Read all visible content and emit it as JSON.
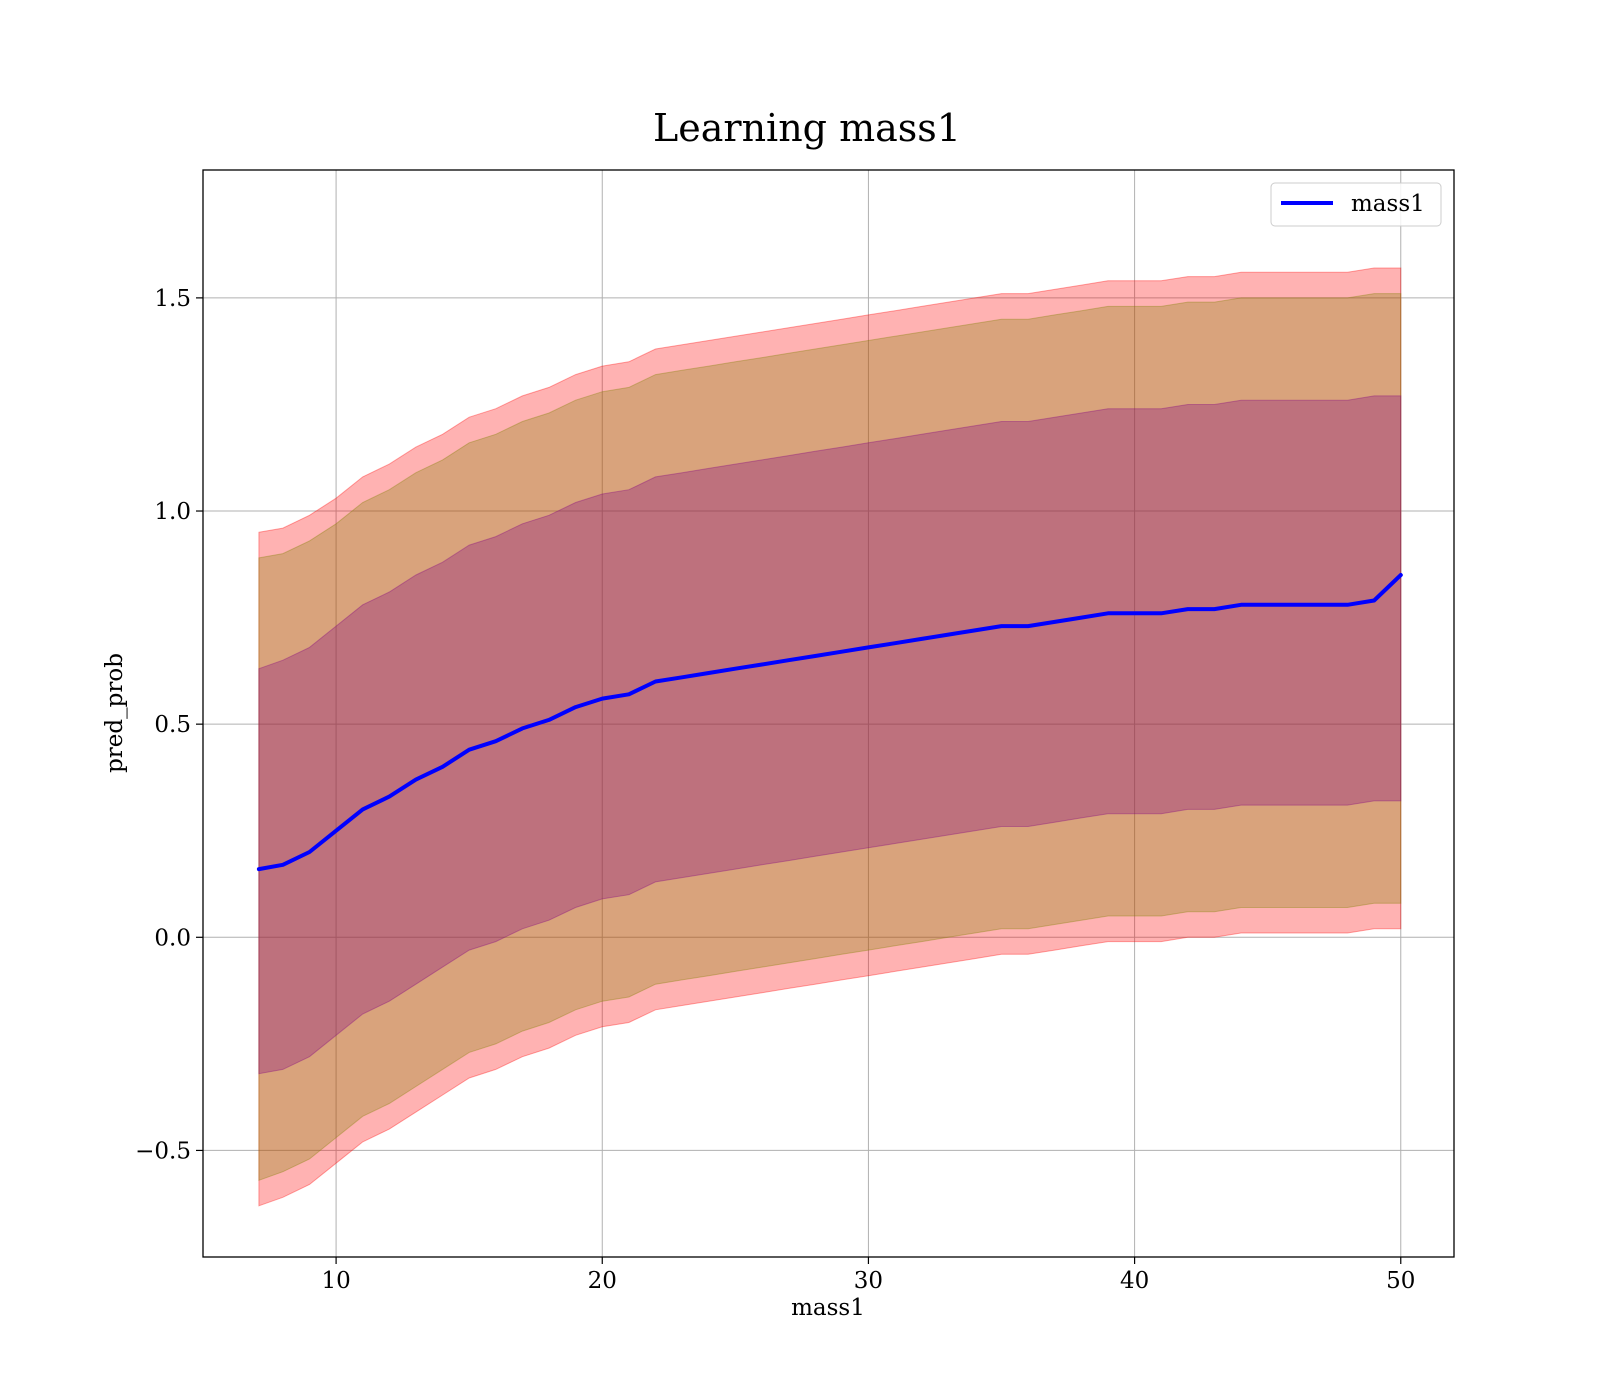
{
  "chart_data": {
    "type": "line",
    "title": "Learning mass1",
    "xlabel": "mass1",
    "ylabel": "pred_prob",
    "xlim": [
      5.0,
      52.0
    ],
    "ylim": [
      -0.75,
      1.8
    ],
    "xticks": [
      10,
      20,
      30,
      40,
      50
    ],
    "yticks": [
      -0.5,
      0.0,
      0.5,
      1.0,
      1.5
    ],
    "xtick_labels": [
      "10",
      "20",
      "30",
      "40",
      "50"
    ],
    "ytick_labels": [
      "−0.5",
      "0.0",
      "0.5",
      "1.0",
      "1.5"
    ],
    "grid": true,
    "legend": {
      "placement": "top-right",
      "entries": [
        "mass1"
      ]
    },
    "colors": {
      "line": "#0000ff",
      "band_outer": "#ff0000",
      "band_middle": "#808000",
      "band_inner": "#800080"
    },
    "series": [
      {
        "name": "mass1",
        "x": [
          7.1,
          8.0,
          9.0,
          10.0,
          11.0,
          12.0,
          13.0,
          14.0,
          15.0,
          16.0,
          17.0,
          18.0,
          19.0,
          20.0,
          21.0,
          22.0,
          23.0,
          24.0,
          25.0,
          26.0,
          27.0,
          28.0,
          29.0,
          30.0,
          31.0,
          32.0,
          33.0,
          34.0,
          35.0,
          36.0,
          37.0,
          38.0,
          39.0,
          40.0,
          41.0,
          42.0,
          43.0,
          44.0,
          45.0,
          46.0,
          47.0,
          48.0,
          49.0,
          50.0
        ],
        "y": [
          0.16,
          0.17,
          0.2,
          0.25,
          0.3,
          0.33,
          0.37,
          0.4,
          0.44,
          0.46,
          0.49,
          0.51,
          0.54,
          0.56,
          0.57,
          0.6,
          0.61,
          0.62,
          0.63,
          0.64,
          0.65,
          0.66,
          0.67,
          0.68,
          0.69,
          0.7,
          0.71,
          0.72,
          0.73,
          0.73,
          0.74,
          0.75,
          0.76,
          0.76,
          0.76,
          0.77,
          0.77,
          0.78,
          0.78,
          0.78,
          0.78,
          0.78,
          0.79,
          0.85
        ]
      }
    ],
    "bands": [
      {
        "level": "outer",
        "lower": [
          -0.63,
          -0.61,
          -0.58,
          -0.53,
          -0.48,
          -0.45,
          -0.41,
          -0.37,
          -0.33,
          -0.31,
          -0.28,
          -0.26,
          -0.23,
          -0.21,
          -0.2,
          -0.17,
          -0.16,
          -0.15,
          -0.14,
          -0.13,
          -0.12,
          -0.11,
          -0.1,
          -0.09,
          -0.08,
          -0.07,
          -0.06,
          -0.05,
          -0.04,
          -0.04,
          -0.03,
          -0.02,
          -0.01,
          -0.01,
          -0.01,
          0.0,
          0.0,
          0.01,
          0.01,
          0.01,
          0.01,
          0.01,
          0.02,
          0.02
        ],
        "upper": [
          0.95,
          0.96,
          0.99,
          1.03,
          1.08,
          1.11,
          1.15,
          1.18,
          1.22,
          1.24,
          1.27,
          1.29,
          1.32,
          1.34,
          1.35,
          1.38,
          1.39,
          1.4,
          1.41,
          1.42,
          1.43,
          1.44,
          1.45,
          1.46,
          1.47,
          1.48,
          1.49,
          1.5,
          1.51,
          1.51,
          1.52,
          1.53,
          1.54,
          1.54,
          1.54,
          1.55,
          1.55,
          1.56,
          1.56,
          1.56,
          1.56,
          1.56,
          1.57,
          1.57
        ]
      },
      {
        "level": "middle",
        "lower": [
          -0.57,
          -0.55,
          -0.52,
          -0.47,
          -0.42,
          -0.39,
          -0.35,
          -0.31,
          -0.27,
          -0.25,
          -0.22,
          -0.2,
          -0.17,
          -0.15,
          -0.14,
          -0.11,
          -0.1,
          -0.09,
          -0.08,
          -0.07,
          -0.06,
          -0.05,
          -0.04,
          -0.03,
          -0.02,
          -0.01,
          0.0,
          0.01,
          0.02,
          0.02,
          0.03,
          0.04,
          0.05,
          0.05,
          0.05,
          0.06,
          0.06,
          0.07,
          0.07,
          0.07,
          0.07,
          0.07,
          0.08,
          0.08
        ],
        "upper": [
          0.89,
          0.9,
          0.93,
          0.97,
          1.02,
          1.05,
          1.09,
          1.12,
          1.16,
          1.18,
          1.21,
          1.23,
          1.26,
          1.28,
          1.29,
          1.32,
          1.33,
          1.34,
          1.35,
          1.36,
          1.37,
          1.38,
          1.39,
          1.4,
          1.41,
          1.42,
          1.43,
          1.44,
          1.45,
          1.45,
          1.46,
          1.47,
          1.48,
          1.48,
          1.48,
          1.49,
          1.49,
          1.5,
          1.5,
          1.5,
          1.5,
          1.5,
          1.51,
          1.51
        ]
      },
      {
        "level": "inner",
        "lower": [
          -0.32,
          -0.31,
          -0.28,
          -0.23,
          -0.18,
          -0.15,
          -0.11,
          -0.07,
          -0.03,
          -0.01,
          0.02,
          0.04,
          0.07,
          0.09,
          0.1,
          0.13,
          0.14,
          0.15,
          0.16,
          0.17,
          0.18,
          0.19,
          0.2,
          0.21,
          0.22,
          0.23,
          0.24,
          0.25,
          0.26,
          0.26,
          0.27,
          0.28,
          0.29,
          0.29,
          0.29,
          0.3,
          0.3,
          0.31,
          0.31,
          0.31,
          0.31,
          0.31,
          0.32,
          0.32
        ],
        "upper": [
          0.63,
          0.65,
          0.68,
          0.73,
          0.78,
          0.81,
          0.85,
          0.88,
          0.92,
          0.94,
          0.97,
          0.99,
          1.02,
          1.04,
          1.05,
          1.08,
          1.09,
          1.1,
          1.11,
          1.12,
          1.13,
          1.14,
          1.15,
          1.16,
          1.17,
          1.18,
          1.19,
          1.2,
          1.21,
          1.21,
          1.22,
          1.23,
          1.24,
          1.24,
          1.24,
          1.25,
          1.25,
          1.26,
          1.26,
          1.26,
          1.26,
          1.26,
          1.27,
          1.27
        ]
      }
    ]
  }
}
